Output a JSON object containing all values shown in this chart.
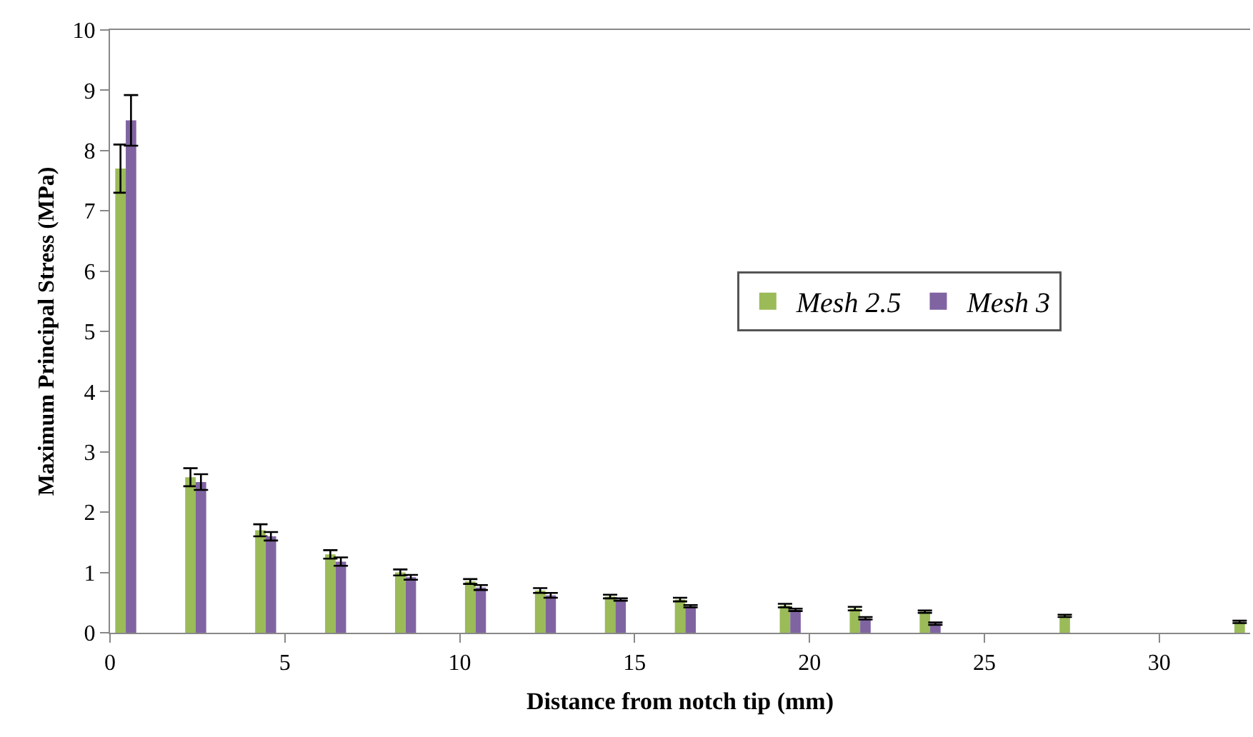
{
  "chart_data": {
    "type": "bar",
    "xlabel": "Distance from notch tip (mm)",
    "ylabel": "Maximum Principal Stress (MPa)",
    "xlim": [
      0,
      32.6
    ],
    "xticks": [
      0,
      5,
      10,
      15,
      20,
      25,
      30
    ],
    "ylim": [
      0,
      10
    ],
    "yticks": [
      0,
      1,
      2,
      3,
      4,
      5,
      6,
      7,
      8,
      9,
      10
    ],
    "series": [
      {
        "name": "Mesh 2.5",
        "color": "#9bbb59",
        "x": [
          0.3,
          2.3,
          4.3,
          6.3,
          8.3,
          10.3,
          12.3,
          14.3,
          16.3,
          19.3,
          21.3,
          23.3,
          27.3,
          32.3
        ],
        "values": [
          7.7,
          2.58,
          1.7,
          1.3,
          1.0,
          0.85,
          0.7,
          0.6,
          0.55,
          0.45,
          0.4,
          0.35,
          0.28,
          0.18
        ],
        "errors": [
          0.4,
          0.15,
          0.1,
          0.07,
          0.05,
          0.04,
          0.04,
          0.03,
          0.03,
          0.03,
          0.03,
          0.02,
          0.02,
          0.02
        ]
      },
      {
        "name": "Mesh 3",
        "color": "#8064a2",
        "x": [
          0.6,
          2.6,
          4.6,
          6.6,
          8.6,
          10.6,
          12.6,
          14.6,
          16.6,
          19.6,
          21.6,
          23.6
        ],
        "values": [
          8.5,
          2.5,
          1.6,
          1.18,
          0.92,
          0.75,
          0.62,
          0.55,
          0.44,
          0.38,
          0.24,
          0.15
        ],
        "errors": [
          0.42,
          0.13,
          0.07,
          0.07,
          0.04,
          0.04,
          0.04,
          0.02,
          0.02,
          0.02,
          0.02,
          0.02
        ]
      }
    ],
    "grid": false,
    "legend": "right"
  }
}
